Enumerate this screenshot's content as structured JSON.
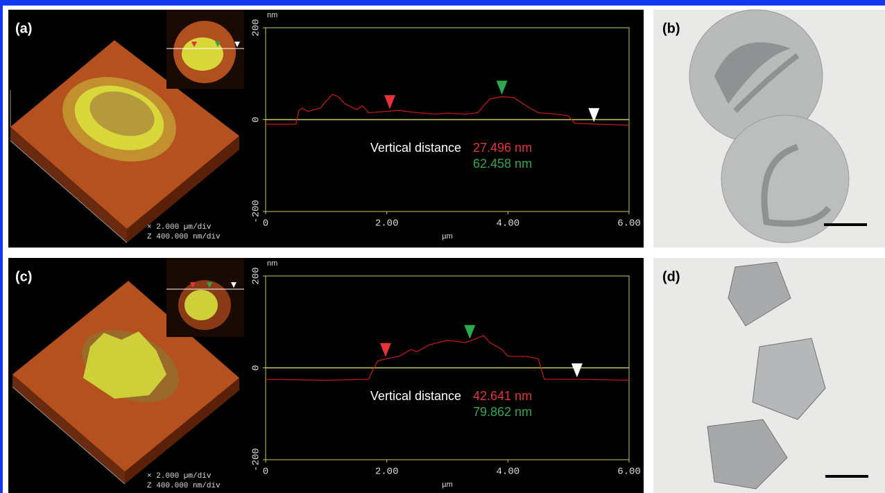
{
  "panel_labels": [
    "(a)",
    "(b)",
    "(c)",
    "(d)"
  ],
  "scale_notes": [
    [
      "×  2.000 µm/div",
      "Z  400.000 nm/div"
    ],
    [
      "×  2.000 µm/div",
      "Z  400.000 nm/div"
    ]
  ],
  "chart_data": [
    {
      "type": "line",
      "y_label": "nm",
      "x_label": "µm",
      "color": "#d01818",
      "axis_color": "#c8cc5a",
      "xlim": [
        0,
        6
      ],
      "ylim": [
        -200,
        200
      ],
      "xticks": [
        0,
        {
          "value": 2,
          "label": "2.00"
        },
        {
          "value": 4,
          "label": "4.00"
        },
        {
          "value": 6,
          "label": "6.00"
        }
      ],
      "yticks": [
        -200,
        0,
        200
      ],
      "x": [
        0,
        0.5,
        0.55,
        0.6,
        0.7,
        0.9,
        1.1,
        1.2,
        1.3,
        1.5,
        1.6,
        1.7,
        2.0,
        2.2,
        2.5,
        2.8,
        3.0,
        3.3,
        3.5,
        3.7,
        3.9,
        4.1,
        4.3,
        4.5,
        4.8,
        5.0,
        5.1,
        5.5,
        6.0
      ],
      "values": [
        -10,
        -10,
        20,
        25,
        18,
        25,
        55,
        50,
        35,
        22,
        30,
        15,
        18,
        20,
        15,
        12,
        14,
        12,
        15,
        45,
        50,
        48,
        30,
        15,
        12,
        8,
        -8,
        -10,
        -12
      ],
      "markers": [
        {
          "color": "#e8323a",
          "x": 2.05
        },
        {
          "color": "#2ea84f",
          "x": 3.9
        },
        {
          "color": "#ffffff",
          "x": 5.42
        }
      ],
      "annotation_title": "Vertical distance",
      "annotations": [
        {
          "text": "27.496 nm",
          "color": "#e8323a"
        },
        {
          "text": "62.458 nm",
          "color": "#2ea84f"
        }
      ]
    },
    {
      "type": "line",
      "y_label": "nm",
      "x_label": "µm",
      "color": "#d01818",
      "axis_color": "#c8cc5a",
      "xlim": [
        0,
        6
      ],
      "ylim": [
        -200,
        200
      ],
      "xticks": [
        0,
        {
          "value": 2,
          "label": "2.00"
        },
        {
          "value": 4,
          "label": "4.00"
        },
        {
          "value": 6,
          "label": "6.00"
        }
      ],
      "yticks": [
        -200,
        0,
        200
      ],
      "x": [
        0,
        1.0,
        1.7,
        1.75,
        1.85,
        2.0,
        2.2,
        2.4,
        2.5,
        2.7,
        3.0,
        3.3,
        3.5,
        3.6,
        3.7,
        3.9,
        4.0,
        4.3,
        4.5,
        4.6,
        5.2,
        6.0
      ],
      "values": [
        -25,
        -27,
        -25,
        -10,
        15,
        20,
        25,
        40,
        35,
        50,
        60,
        55,
        65,
        70,
        55,
        40,
        25,
        25,
        20,
        -25,
        -25,
        -27
      ],
      "markers": [
        {
          "color": "#e8323a",
          "x": 1.98
        },
        {
          "color": "#2ea84f",
          "x": 3.37
        },
        {
          "color": "#ffffff",
          "x": 5.14
        }
      ],
      "annotation_title": "Vertical distance",
      "annotations": [
        {
          "text": "42.641 nm",
          "color": "#e8323a"
        },
        {
          "text": "79.862 nm",
          "color": "#2ea84f"
        }
      ]
    }
  ]
}
